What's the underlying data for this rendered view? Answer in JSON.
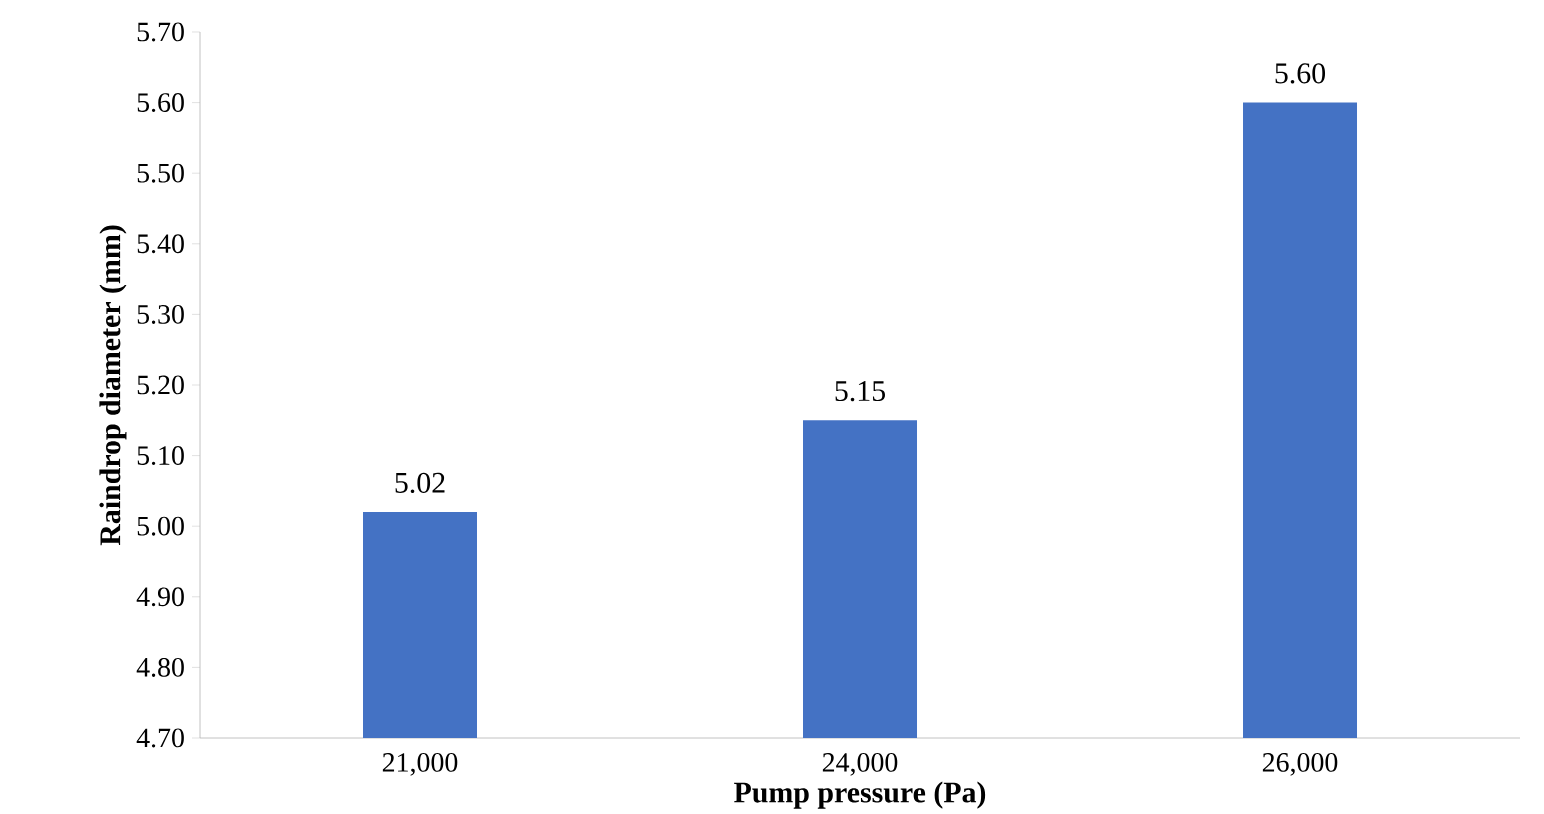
{
  "chart_data": {
    "type": "bar",
    "xlabel": "Pump pressure (Pa)",
    "ylabel": "Raindrop diameter (mm)",
    "categories": [
      "21,000",
      "24,000",
      "26,000"
    ],
    "values": [
      5.02,
      5.15,
      5.6
    ],
    "value_labels": [
      "5.02",
      "5.15",
      "5.60"
    ],
    "color": "#4472c4",
    "ylim": [
      4.7,
      5.7
    ],
    "yticks": [
      {
        "value": 4.7,
        "label": "4.70"
      },
      {
        "value": 4.8,
        "label": "4.80"
      },
      {
        "value": 4.9,
        "label": "4.90"
      },
      {
        "value": 5.0,
        "label": "5.00"
      },
      {
        "value": 5.1,
        "label": "5.10"
      },
      {
        "value": 5.2,
        "label": "5.20"
      },
      {
        "value": 5.3,
        "label": "5.30"
      },
      {
        "value": 5.4,
        "label": "5.40"
      },
      {
        "value": 5.5,
        "label": "5.50"
      },
      {
        "value": 5.6,
        "label": "5.60"
      },
      {
        "value": 5.7,
        "label": "5.70"
      }
    ],
    "grid": false
  }
}
